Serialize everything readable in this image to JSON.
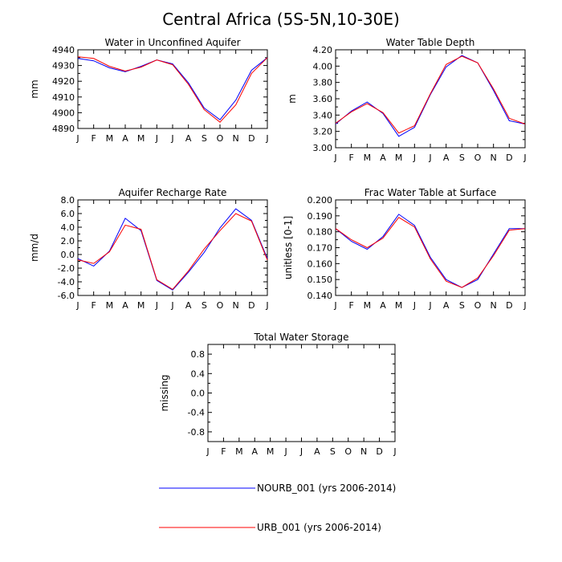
{
  "title": "Central Africa (5S-5N,10-30E)",
  "chart_data": [
    {
      "id": "p1",
      "type": "line",
      "title": "Water in Unconfined Aquifer",
      "ylabel": "mm",
      "xlabel": "",
      "x": [
        "J",
        "F",
        "M",
        "A",
        "M",
        "J",
        "J",
        "A",
        "S",
        "O",
        "N",
        "D",
        "J"
      ],
      "ylim": [
        4890,
        4940
      ],
      "yticks": [
        4890,
        4900,
        4910,
        4920,
        4930,
        4940
      ],
      "ytick_labels": [
        "4890",
        "4900",
        "4910",
        "4920",
        "4930",
        "4940"
      ],
      "series": [
        {
          "name": "NOURB_001 (yrs 2006-2014)",
          "color": "#0000ff",
          "values": [
            4934.5,
            4933,
            4928.5,
            4926,
            4929.5,
            4933.5,
            4931,
            4919,
            4903,
            4895.5,
            4908,
            4927,
            4935
          ]
        },
        {
          "name": "URB_001 (yrs 2006-2014)",
          "color": "#ff0000",
          "values": [
            4935.5,
            4934.5,
            4929.5,
            4926.5,
            4929,
            4933.5,
            4930.5,
            4918,
            4902,
            4894,
            4905,
            4925,
            4935
          ]
        }
      ]
    },
    {
      "id": "p2",
      "type": "line",
      "title": "Water Table Depth",
      "ylabel": "m",
      "xlabel": "",
      "x": [
        "J",
        "F",
        "M",
        "A",
        "M",
        "J",
        "J",
        "A",
        "S",
        "O",
        "N",
        "D",
        "J"
      ],
      "ylim": [
        3.0,
        4.2
      ],
      "yticks": [
        3.0,
        3.2,
        3.4,
        3.6,
        3.8,
        4.0,
        4.2
      ],
      "ytick_labels": [
        "3.00",
        "3.20",
        "3.40",
        "3.60",
        "3.80",
        "4.00",
        "4.20"
      ],
      "series": [
        {
          "name": "NOURB_001 (yrs 2006-2014)",
          "color": "#0000ff",
          "values": [
            3.29,
            3.45,
            3.56,
            3.42,
            3.14,
            3.25,
            3.65,
            3.99,
            4.13,
            4.04,
            3.7,
            3.33,
            3.29
          ]
        },
        {
          "name": "URB_001 (yrs 2006-2014)",
          "color": "#ff0000",
          "values": [
            3.3,
            3.44,
            3.54,
            3.43,
            3.18,
            3.27,
            3.66,
            4.02,
            4.12,
            4.04,
            3.72,
            3.36,
            3.29
          ]
        }
      ]
    },
    {
      "id": "p3",
      "type": "line",
      "title": "Aquifer Recharge Rate",
      "ylabel": "mm/d",
      "xlabel": "",
      "x": [
        "J",
        "F",
        "M",
        "A",
        "M",
        "J",
        "J",
        "A",
        "S",
        "O",
        "N",
        "D",
        "J"
      ],
      "ylim": [
        -6.0,
        8.0
      ],
      "yticks": [
        -6,
        -4,
        -2,
        0,
        2,
        4,
        6,
        8
      ],
      "ytick_labels": [
        "-6.0",
        "-4.0",
        "-2.0",
        "0.0",
        "2.0",
        "4.0",
        "6.0",
        "8.0"
      ],
      "series": [
        {
          "name": "NOURB_001 (yrs 2006-2014)",
          "color": "#0000ff",
          "values": [
            -0.6,
            -1.7,
            0.5,
            5.3,
            3.5,
            -3.8,
            -5.2,
            -2.6,
            0.3,
            3.9,
            6.7,
            5.0,
            -0.6
          ]
        },
        {
          "name": "URB_001 (yrs 2006-2014)",
          "color": "#ff0000",
          "values": [
            -0.8,
            -1.3,
            0.4,
            4.3,
            3.7,
            -3.7,
            -5.1,
            -2.4,
            0.8,
            3.5,
            6.0,
            4.9,
            -0.8
          ]
        }
      ]
    },
    {
      "id": "p4",
      "type": "line",
      "title": "Frac Water Table at Surface",
      "ylabel": "unitless [0-1]",
      "xlabel": "",
      "x": [
        "J",
        "F",
        "M",
        "A",
        "M",
        "J",
        "J",
        "A",
        "S",
        "O",
        "N",
        "D",
        "J"
      ],
      "ylim": [
        0.14,
        0.2
      ],
      "yticks": [
        0.14,
        0.15,
        0.16,
        0.17,
        0.18,
        0.19,
        0.2
      ],
      "ytick_labels": [
        "0.140",
        "0.150",
        "0.160",
        "0.170",
        "0.180",
        "0.190",
        "0.200"
      ],
      "series": [
        {
          "name": "NOURB_001 (yrs 2006-2014)",
          "color": "#0000ff",
          "values": [
            0.182,
            0.174,
            0.169,
            0.177,
            0.191,
            0.184,
            0.164,
            0.15,
            0.145,
            0.15,
            0.166,
            0.182,
            0.182
          ]
        },
        {
          "name": "URB_001 (yrs 2006-2014)",
          "color": "#ff0000",
          "values": [
            0.182,
            0.175,
            0.17,
            0.176,
            0.189,
            0.183,
            0.163,
            0.149,
            0.145,
            0.151,
            0.165,
            0.181,
            0.182
          ]
        }
      ]
    },
    {
      "id": "p5",
      "type": "line",
      "title": "Total Water Storage",
      "ylabel": "missing",
      "xlabel": "",
      "x": [
        "J",
        "F",
        "M",
        "A",
        "M",
        "J",
        "J",
        "A",
        "S",
        "O",
        "N",
        "D",
        "J"
      ],
      "ylim": [
        -1.0,
        1.0
      ],
      "yticks": [
        -0.8,
        -0.4,
        0.0,
        0.4,
        0.8
      ],
      "ytick_labels": [
        "-0.8",
        "-0.4",
        "0.0",
        "0.4",
        "0.8"
      ],
      "series": []
    }
  ],
  "legend": [
    {
      "label": "NOURB_001 (yrs 2006-2014)",
      "color": "#0000ff"
    },
    {
      "label": "URB_001 (yrs 2006-2014)",
      "color": "#ff0000"
    }
  ]
}
